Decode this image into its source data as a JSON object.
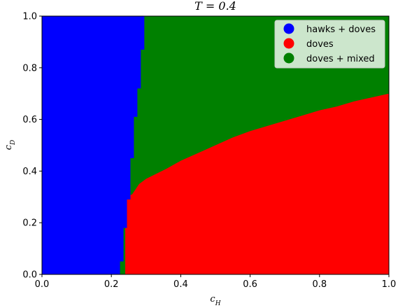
{
  "chart_data": {
    "type": "area",
    "title": "T = 0.4",
    "xlabel": "c_H",
    "ylabel": "c_D",
    "xlim": [
      0,
      1
    ],
    "ylim": [
      0,
      1
    ],
    "x_ticks": [
      "0.0",
      "0.2",
      "0.4",
      "0.6",
      "0.8",
      "1.0"
    ],
    "y_ticks": [
      "0.0",
      "0.2",
      "0.4",
      "0.6",
      "0.8",
      "1.0"
    ],
    "grid": false,
    "legend_position": "top-right",
    "legend": [
      {
        "label": "hawks + doves",
        "color": "#0000ff"
      },
      {
        "label": "doves",
        "color": "#ff0000"
      },
      {
        "label": "doves + mixed",
        "color": "#008000"
      }
    ],
    "regions": [
      {
        "name": "hawks + doves",
        "color": "#0000ff",
        "boundary_right": [
          [
            0.225,
            0.0
          ],
          [
            0.225,
            0.05
          ],
          [
            0.235,
            0.05
          ],
          [
            0.235,
            0.18
          ],
          [
            0.245,
            0.18
          ],
          [
            0.245,
            0.29
          ],
          [
            0.255,
            0.29
          ],
          [
            0.255,
            0.45
          ],
          [
            0.265,
            0.45
          ],
          [
            0.265,
            0.61
          ],
          [
            0.275,
            0.61
          ],
          [
            0.275,
            0.72
          ],
          [
            0.285,
            0.72
          ],
          [
            0.285,
            0.87
          ],
          [
            0.295,
            0.87
          ],
          [
            0.295,
            1.0
          ]
        ]
      },
      {
        "name": "doves",
        "color": "#ff0000",
        "boundary_top": [
          [
            0.24,
            0.3
          ],
          [
            0.26,
            0.31
          ],
          [
            0.27,
            0.33
          ],
          [
            0.28,
            0.35
          ],
          [
            0.3,
            0.37
          ],
          [
            0.33,
            0.39
          ],
          [
            0.36,
            0.41
          ],
          [
            0.4,
            0.44
          ],
          [
            0.45,
            0.47
          ],
          [
            0.5,
            0.5
          ],
          [
            0.55,
            0.53
          ],
          [
            0.6,
            0.555
          ],
          [
            0.65,
            0.575
          ],
          [
            0.7,
            0.595
          ],
          [
            0.75,
            0.615
          ],
          [
            0.8,
            0.635
          ],
          [
            0.85,
            0.65
          ],
          [
            0.9,
            0.67
          ],
          [
            0.95,
            0.685
          ],
          [
            1.0,
            0.7
          ]
        ]
      },
      {
        "name": "doves + mixed",
        "color": "#008000"
      }
    ]
  }
}
